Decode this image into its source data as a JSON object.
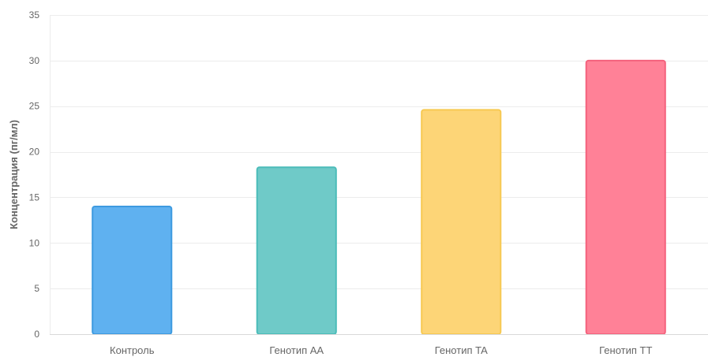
{
  "chart_data": {
    "type": "bar",
    "title": "",
    "xlabel": "",
    "ylabel": "Концентрация (пг/мл)",
    "categories": [
      "Контроль",
      "Генотип AA",
      "Генотип TA",
      "Генотип TT"
    ],
    "values": [
      14,
      18.3,
      24.6,
      30
    ],
    "ylim": [
      0,
      35
    ],
    "y_ticks": [
      0,
      5,
      10,
      15,
      20,
      25,
      30,
      35
    ],
    "grid": true,
    "legend": "none",
    "bar_colors": [
      {
        "fill": "#5fb1f0",
        "stroke": "#3d9ae0"
      },
      {
        "fill": "#6fcac8",
        "stroke": "#4bbcb9"
      },
      {
        "fill": "#fdd577",
        "stroke": "#f7c952"
      },
      {
        "fill": "#ff8197",
        "stroke": "#f4627d"
      }
    ],
    "gridline_color": "#ececec",
    "axis_color": "#d9d9d9"
  }
}
